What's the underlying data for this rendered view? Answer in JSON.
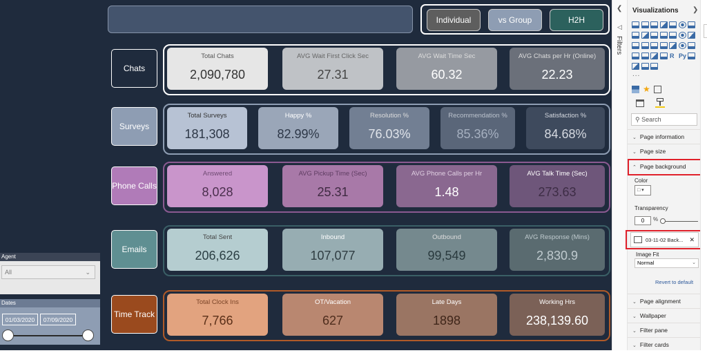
{
  "nav": {
    "individual": "Individual",
    "vs_group": "vs Group",
    "h2h": "H2H"
  },
  "sections": [
    {
      "label": "Chats",
      "label_bg": "#1f2b3d",
      "frame_color": "#ffffff",
      "cards": [
        {
          "label": "Total Chats",
          "value": "2,090,780",
          "bg": "#e6e6e6",
          "lbl_color": "#555555",
          "val_color": "#333333"
        },
        {
          "label": "AVG Wait First Click Sec",
          "value": "27.31",
          "bg": "#bfc2c6",
          "lbl_color": "#666666",
          "val_color": "#444444"
        },
        {
          "label": "AVG Wait Time Sec",
          "value": "60.32",
          "bg": "#969aa1",
          "lbl_color": "#dddddd",
          "val_color": "#ffffff"
        },
        {
          "label": "AVG Chats per Hr (Online)",
          "value": "22.23",
          "bg": "#6b707a",
          "lbl_color": "#dddddd",
          "val_color": "#ffffff"
        }
      ]
    },
    {
      "label": "Surveys",
      "label_bg": "#8e9db3",
      "frame_color": "#8e9db3",
      "cards": [
        {
          "label": "Total Surveys",
          "value": "181,308",
          "bg": "#b7c2d4",
          "lbl_color": "#333333",
          "val_color": "#2d3747"
        },
        {
          "label": "Happy %",
          "value": "82.99%",
          "bg": "#9aa6b8",
          "lbl_color": "#ffffff",
          "val_color": "#2d3747"
        },
        {
          "label": "Resolution %",
          "value": "76.03%",
          "bg": "#727f93",
          "lbl_color": "#dddddd",
          "val_color": "#e0e4ea"
        },
        {
          "label": "Recommendation %",
          "value": "85.36%",
          "bg": "#5a6679",
          "lbl_color": "#bcc3ce",
          "val_color": "#a6b0c0"
        },
        {
          "label": "Satisfaction %",
          "value": "84.68%",
          "bg": "#3e4a5d",
          "lbl_color": "#d5d9e0",
          "val_color": "#d5d9e0"
        }
      ]
    },
    {
      "label": "Phone Calls",
      "label_bg": "#b07bb8",
      "frame_color": "#8b5a91",
      "cards": [
        {
          "label": "Answered",
          "value": "8,028",
          "bg": "#c995cb",
          "lbl_color": "#6e4a72",
          "val_color": "#4a2f4d"
        },
        {
          "label": "AVG Pickup Time (Sec)",
          "value": "25.31",
          "bg": "#a879a8",
          "lbl_color": "#5e3c61",
          "val_color": "#3f2a42"
        },
        {
          "label": "AVG Phone Calls per Hr",
          "value": "1.48",
          "bg": "#8a6890",
          "lbl_color": "#e0d0e2",
          "val_color": "#ffffff"
        },
        {
          "label": "AVG Talk Time (Sec)",
          "value": "273.63",
          "bg": "#6e567a",
          "lbl_color": "#ffffff",
          "val_color": "#3d2d45"
        }
      ]
    },
    {
      "label": "Emails",
      "label_bg": "#5f8f92",
      "frame_color": "#3a5f66",
      "cards": [
        {
          "label": "Total Sent",
          "value": "206,626",
          "bg": "#b5cdd0",
          "lbl_color": "#444444",
          "val_color": "#2c3f44"
        },
        {
          "label": "Inbound",
          "value": "107,077",
          "bg": "#97adb2",
          "lbl_color": "#ffffff",
          "val_color": "#2f3d42"
        },
        {
          "label": "Outbound",
          "value": "99,549",
          "bg": "#75898e",
          "lbl_color": "#dddddd",
          "val_color": "#2a3a3e"
        },
        {
          "label": "AVG Response (Mins)",
          "value": "2,830.9",
          "bg": "#5a6b70",
          "lbl_color": "#c0cbcf",
          "val_color": "#c0cbcf"
        }
      ]
    },
    {
      "label": "Time Track",
      "label_bg": "#9a4a1e",
      "frame_color": "#b05a28",
      "cards": [
        {
          "label": "Total Clock Ins",
          "value": "7,766",
          "bg": "#e2a37f",
          "lbl_color": "#7b4528",
          "val_color": "#5a2f18"
        },
        {
          "label": "OT/Vacation",
          "value": "627",
          "bg": "#b98770",
          "lbl_color": "#ffffff",
          "val_color": "#4e2d1d"
        },
        {
          "label": "Late Days",
          "value": "1898",
          "bg": "#9a7563",
          "lbl_color": "#ffffff",
          "val_color": "#3f261a"
        },
        {
          "label": "Working Hrs",
          "value": "238,139.60",
          "bg": "#7b6157",
          "lbl_color": "#ffffff",
          "val_color": "#ffffff"
        }
      ]
    }
  ],
  "filters": {
    "agent_header": "Agent",
    "agent_value": "All",
    "dates_header": "Dates",
    "date_start": "01/03/2020",
    "date_end": "07/09/2020"
  },
  "filters_pane": {
    "label": "Filters"
  },
  "viz_pane": {
    "title": "Visualizations",
    "r_label": "R",
    "py_label": "Py",
    "more": "...",
    "search_placeholder": "Search",
    "sections_top": [
      "Page information",
      "Page size",
      "Page background"
    ],
    "color_label": "Color",
    "transparency_label": "Transparency",
    "transparency_value": "0",
    "percent": "%",
    "image_file": "03-11-02 Back...",
    "image_fit_label": "Image Fit",
    "image_fit_value": "Normal",
    "revert": "Revert to default",
    "sections_bottom": [
      "Page alignment",
      "Wallpaper",
      "Filter pane",
      "Filter cards"
    ]
  }
}
